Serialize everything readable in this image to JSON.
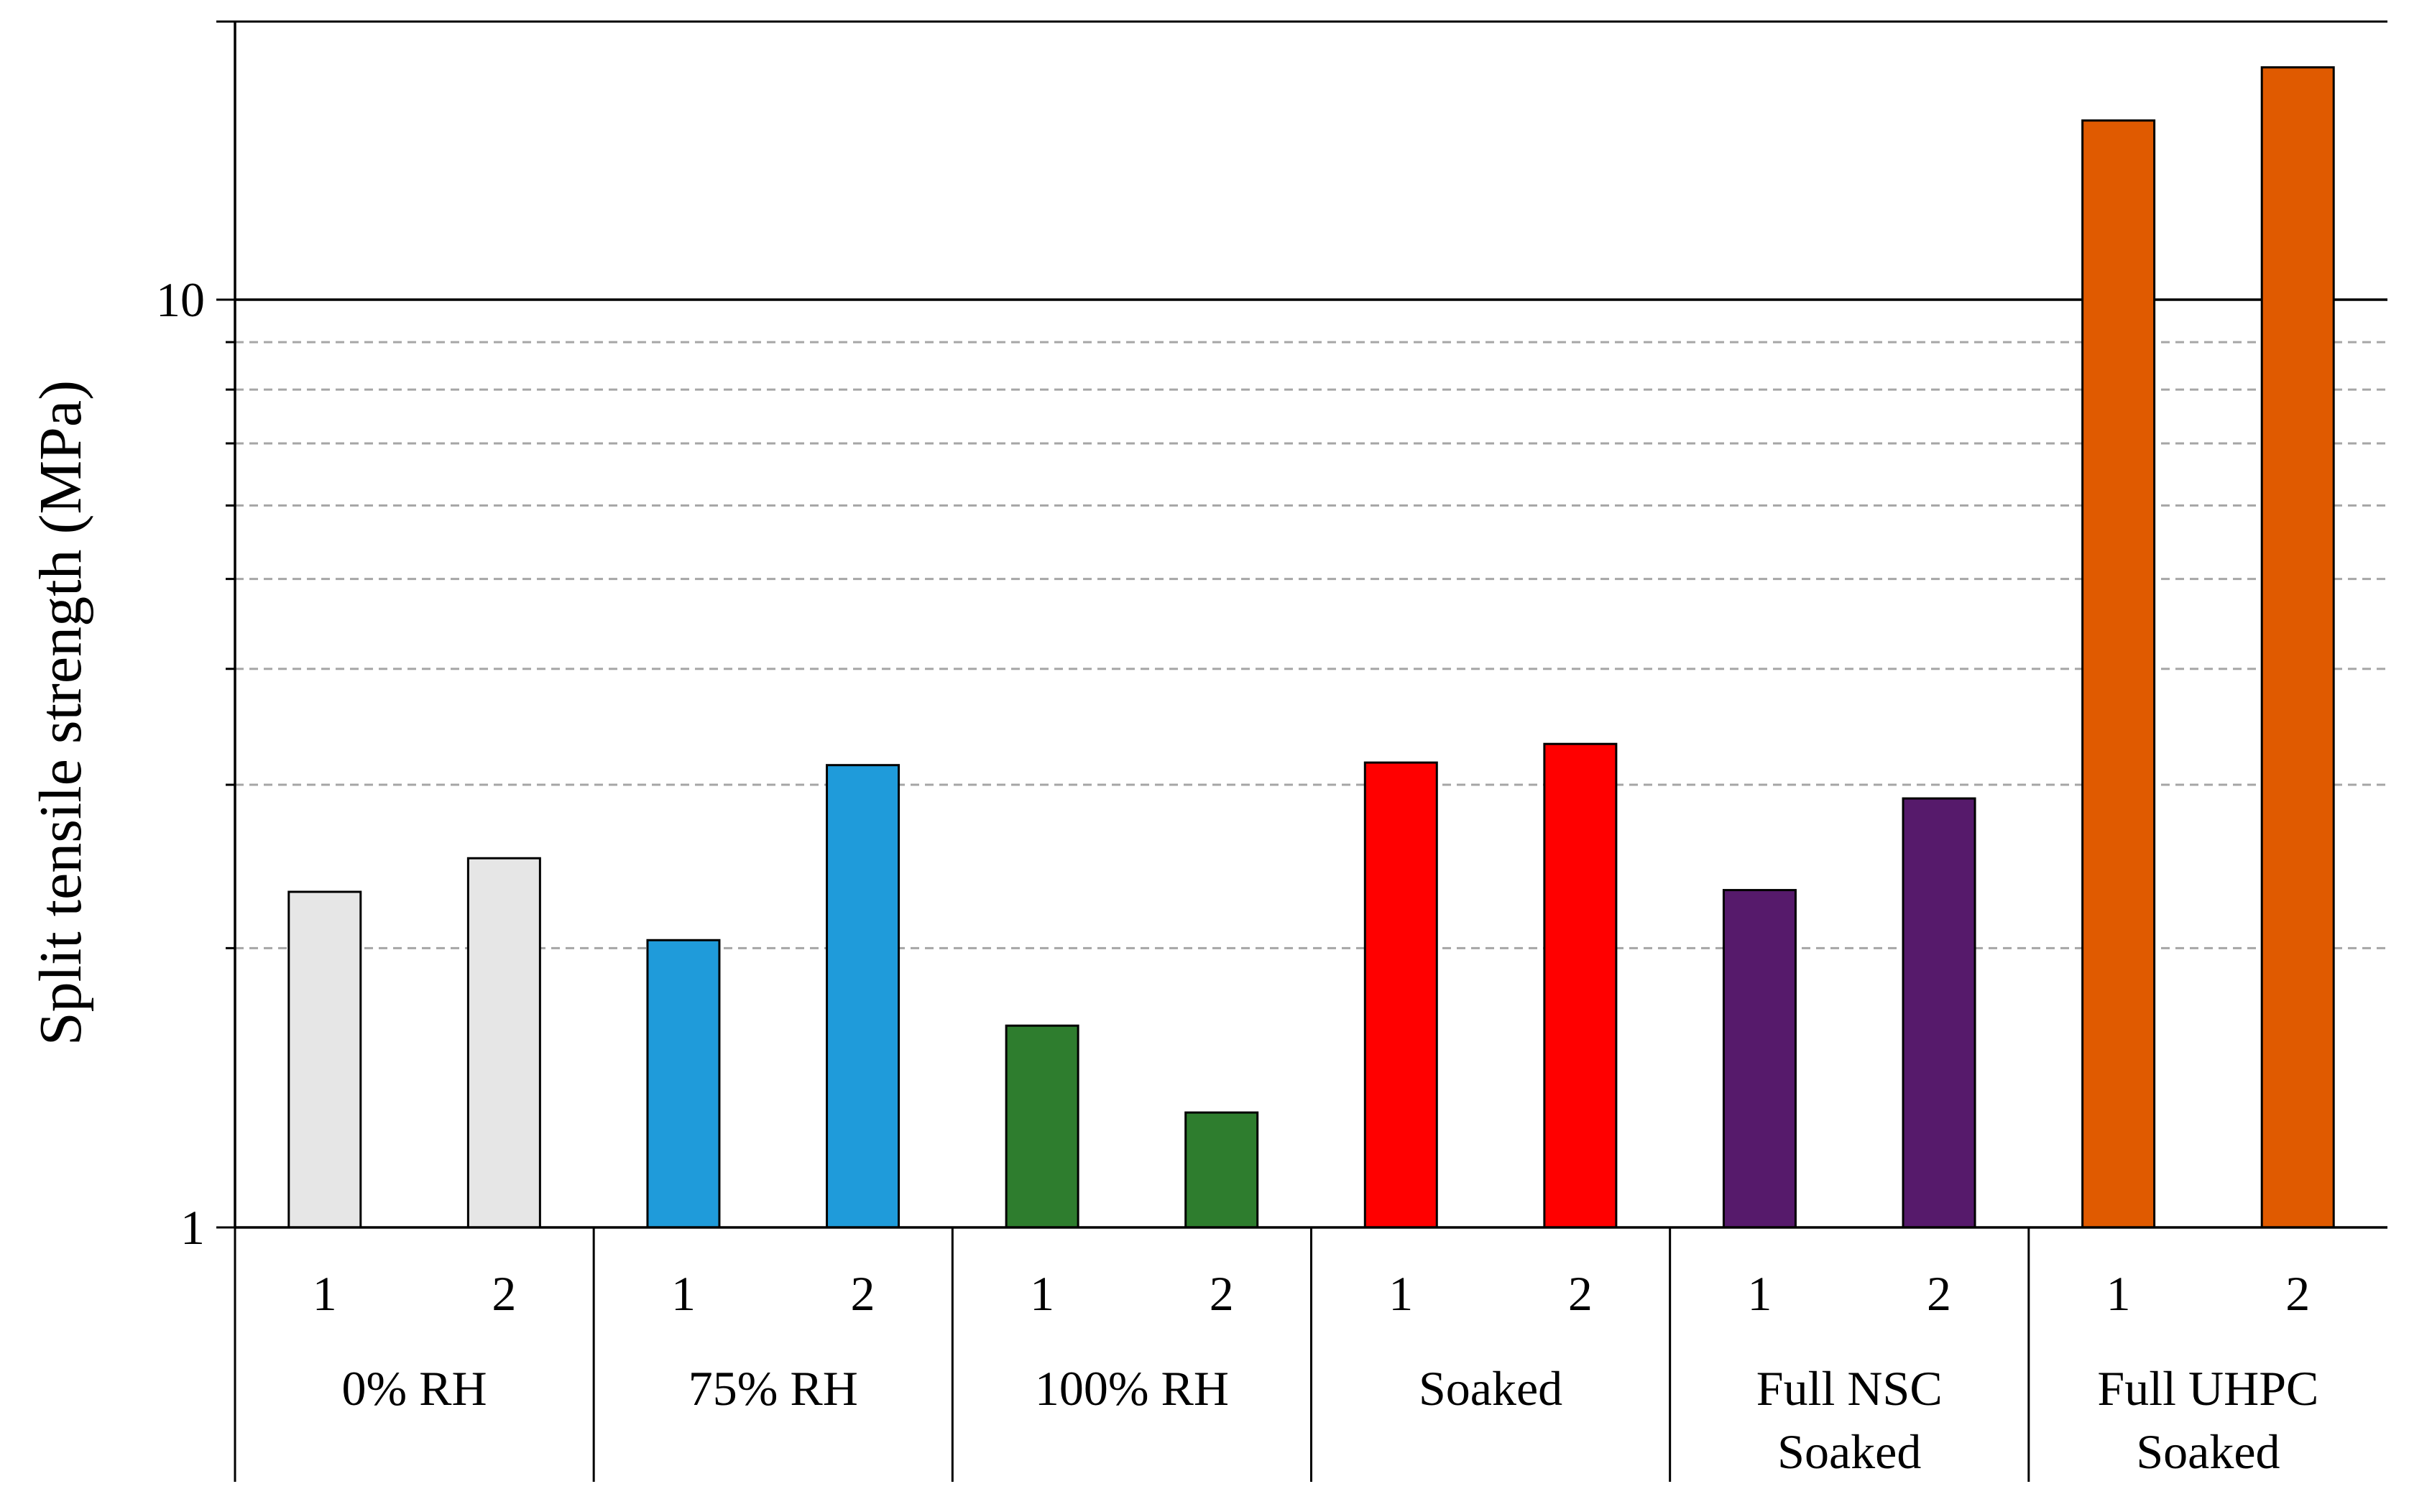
{
  "chart_data": {
    "type": "bar",
    "ylabel": "Split tensile strength (MPa)",
    "xlabel": "",
    "yscale": "log",
    "ylim": [
      1,
      18
    ],
    "yticks": [
      {
        "value": 1,
        "label": "1"
      },
      {
        "value": 10,
        "label": "10"
      }
    ],
    "minor_gridlines": [
      2,
      3,
      4,
      5,
      6,
      7,
      8,
      9
    ],
    "major_gridline": 10,
    "groups": [
      {
        "label_lines": [
          "0% RH"
        ],
        "color": "#e6e6e6",
        "bars": [
          {
            "label": "1",
            "value": 2.3
          },
          {
            "label": "2",
            "value": 2.5
          }
        ]
      },
      {
        "label_lines": [
          "75% RH"
        ],
        "color": "#1f9bda",
        "bars": [
          {
            "label": "1",
            "value": 2.04
          },
          {
            "label": "2",
            "value": 3.15
          }
        ]
      },
      {
        "label_lines": [
          "100% RH"
        ],
        "color": "#2e7d2e",
        "bars": [
          {
            "label": "1",
            "value": 1.65
          },
          {
            "label": "2",
            "value": 1.33
          }
        ]
      },
      {
        "label_lines": [
          "Soaked"
        ],
        "color": "#ff0000",
        "bars": [
          {
            "label": "1",
            "value": 3.17
          },
          {
            "label": "2",
            "value": 3.32
          }
        ]
      },
      {
        "label_lines": [
          "Full NSC",
          "Soaked"
        ],
        "color": "#561a6b",
        "bars": [
          {
            "label": "1",
            "value": 2.31
          },
          {
            "label": "2",
            "value": 2.9
          }
        ]
      },
      {
        "label_lines": [
          "Full UHPC",
          "Soaked"
        ],
        "color": "#e05a00",
        "bars": [
          {
            "label": "1",
            "value": 15.6
          },
          {
            "label": "2",
            "value": 17.8
          }
        ]
      }
    ]
  }
}
